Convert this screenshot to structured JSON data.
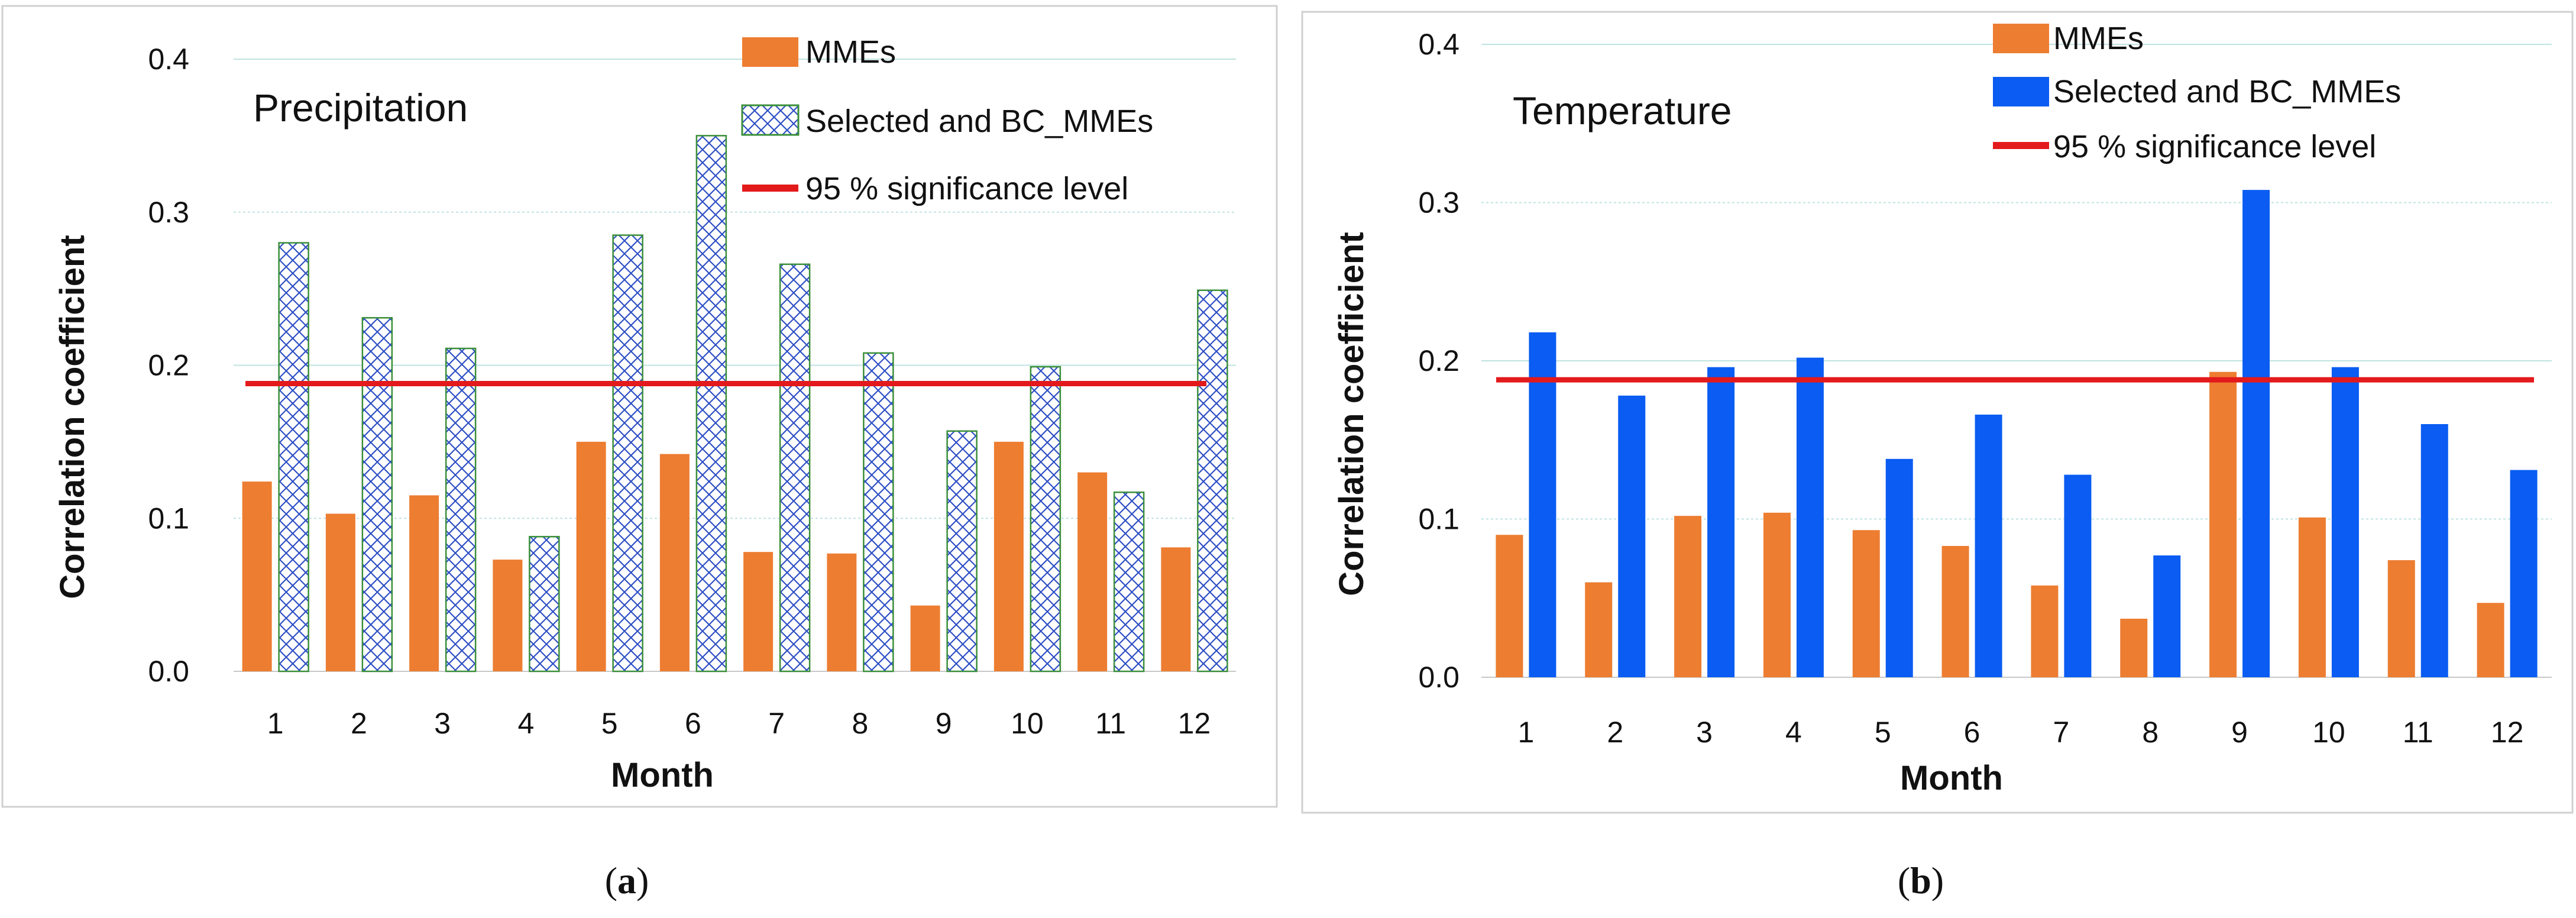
{
  "chart_data": [
    {
      "type": "bar",
      "panel_label": "a",
      "title": "Precipitation",
      "xlabel": "Month",
      "ylabel": "Correlation coefficient",
      "ylim": [
        0,
        0.4
      ],
      "yticks": [
        "0.0",
        "0.1",
        "0.2",
        "0.3",
        "0.4"
      ],
      "categories": [
        "1",
        "2",
        "3",
        "4",
        "5",
        "6",
        "7",
        "8",
        "9",
        "10",
        "11",
        "12"
      ],
      "series": [
        {
          "name": "MMEs",
          "color": "#ED7D31",
          "pattern": "solid",
          "values": [
            0.124,
            0.103,
            0.115,
            0.073,
            0.15,
            0.142,
            0.078,
            0.077,
            0.043,
            0.15,
            0.13,
            0.081
          ]
        },
        {
          "name": "Selected and BC_MMEs",
          "color": "#4472C4",
          "pattern": "crosshatch",
          "values": [
            0.28,
            0.231,
            0.211,
            0.088,
            0.285,
            0.35,
            0.266,
            0.208,
            0.157,
            0.199,
            0.117,
            0.249
          ]
        }
      ],
      "reference_line": {
        "name": "95 % significance level",
        "value": 0.188,
        "color": "#E31A1C"
      },
      "legend_position": "top-right",
      "grid": true
    },
    {
      "type": "bar",
      "panel_label": "b",
      "title": "Temperature",
      "xlabel": "Month",
      "ylabel": "Correlation coefficient",
      "ylim": [
        0,
        0.4
      ],
      "yticks": [
        "0.0",
        "0.1",
        "0.2",
        "0.3",
        "0.4"
      ],
      "categories": [
        "1",
        "2",
        "3",
        "4",
        "5",
        "6",
        "7",
        "8",
        "9",
        "10",
        "11",
        "12"
      ],
      "series": [
        {
          "name": "MMEs",
          "color": "#ED7D31",
          "pattern": "solid",
          "values": [
            0.09,
            0.06,
            0.102,
            0.104,
            0.093,
            0.083,
            0.058,
            0.037,
            0.193,
            0.101,
            0.074,
            0.047
          ]
        },
        {
          "name": "Selected and BC_MMEs",
          "color": "#0A5CF2",
          "pattern": "solid",
          "values": [
            0.218,
            0.178,
            0.196,
            0.202,
            0.138,
            0.166,
            0.128,
            0.077,
            0.308,
            0.196,
            0.16,
            0.131
          ]
        }
      ],
      "reference_line": {
        "name": "95 % significance level",
        "value": 0.188,
        "color": "#E31A1C"
      },
      "legend_position": "top-right",
      "grid": true
    }
  ]
}
